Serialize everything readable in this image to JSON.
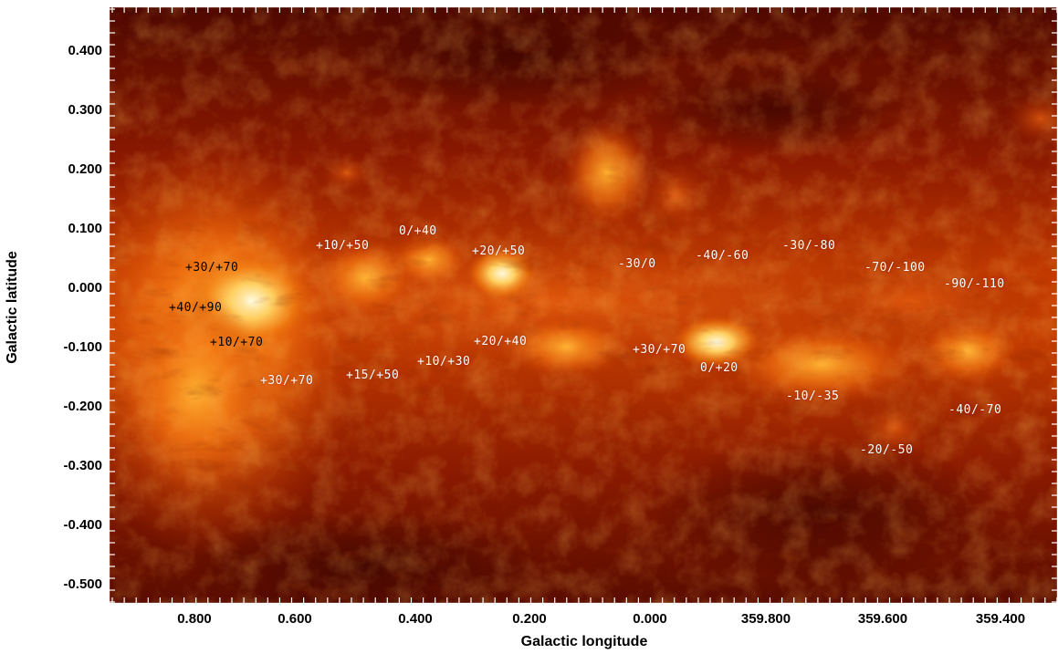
{
  "axes": {
    "xlabel": "Galactic longitude",
    "ylabel": "Galactic latitude",
    "xticks": [
      "0.800",
      "0.600",
      "0.400",
      "0.200",
      "0.000",
      "359.800",
      "359.600",
      "359.400"
    ],
    "yticks": [
      "0.400",
      "0.300",
      "0.200",
      "0.100",
      "0.000",
      "-0.100",
      "-0.200",
      "-0.300",
      "-0.400",
      "-0.500"
    ]
  },
  "velocity_labels": [
    {
      "text": "+30/+70",
      "style": "dark"
    },
    {
      "text": "+40/+90",
      "style": "dark"
    },
    {
      "text": "+10/+70",
      "style": "dark"
    },
    {
      "text": "+30/+70",
      "style": "light"
    },
    {
      "text": "+10/+50",
      "style": "light"
    },
    {
      "text": "0/+40",
      "style": "light"
    },
    {
      "text": "+20/+50",
      "style": "light"
    },
    {
      "text": "+15/+50",
      "style": "light"
    },
    {
      "text": "+10/+30",
      "style": "light"
    },
    {
      "text": "+20/+40",
      "style": "light"
    },
    {
      "text": "-30/0",
      "style": "light"
    },
    {
      "text": "+30/+70",
      "style": "light"
    },
    {
      "text": "0/+20",
      "style": "light"
    },
    {
      "text": "-40/-60",
      "style": "light"
    },
    {
      "text": "-30/-80",
      "style": "light"
    },
    {
      "text": "-70/-100",
      "style": "light"
    },
    {
      "text": "-90/-110",
      "style": "light"
    },
    {
      "text": "-10/-35",
      "style": "light"
    },
    {
      "text": "-40/-70",
      "style": "light"
    },
    {
      "text": "-20/-50",
      "style": "light"
    }
  ],
  "colors": {
    "background_dark": "#5a0a00",
    "mid": "#b83000",
    "bright": "#ff9a10",
    "core": "#fff6c0"
  }
}
